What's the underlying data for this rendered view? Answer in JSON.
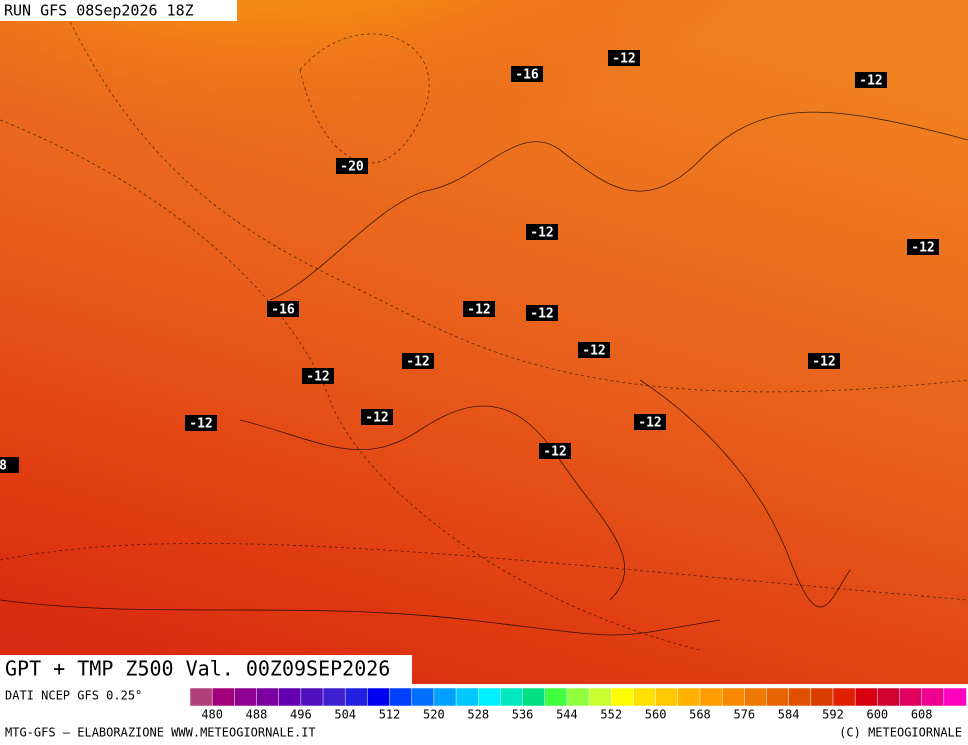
{
  "header": {
    "run": "RUN GFS 08Sep2026 18Z"
  },
  "labels": [
    "-16",
    "-12",
    "-12",
    "-20",
    "-12",
    "-12",
    "-16",
    "-12",
    "-12",
    "-12",
    "-12",
    "-12",
    "-12",
    "-12",
    "-12",
    "-12",
    "-12",
    "8"
  ],
  "footer": {
    "title": "GPT + TMP Z500 Val. 00Z09SEP2026",
    "source": "DATI NCEP GFS 0.25°",
    "credit_left": "MTG-GFS — ELABORAZIONE WWW.METEOGIORNALE.IT",
    "credit_right": "(C) METEOGIORNALE"
  },
  "colorbar": {
    "ticks": [
      480,
      488,
      496,
      504,
      512,
      520,
      528,
      536,
      544,
      552,
      560,
      568,
      576,
      584,
      592,
      600,
      608
    ],
    "colors": [
      "#b0407a",
      "#a0007a",
      "#900090",
      "#7a00a0",
      "#6400b0",
      "#5010c0",
      "#3c20d0",
      "#2020e0",
      "#0000f0",
      "#0040ff",
      "#0070ff",
      "#00a0ff",
      "#00c8ff",
      "#00f0ff",
      "#00e8c0",
      "#00e080",
      "#40ff40",
      "#90ff40",
      "#c8ff30",
      "#ffff00",
      "#ffe000",
      "#ffc800",
      "#ffb000",
      "#ff9c00",
      "#f88800",
      "#f07800",
      "#e86400",
      "#e05000",
      "#d83c00",
      "#e02000",
      "#d80010",
      "#d00030",
      "#e00060",
      "#f00090",
      "#ff00c0"
    ]
  }
}
